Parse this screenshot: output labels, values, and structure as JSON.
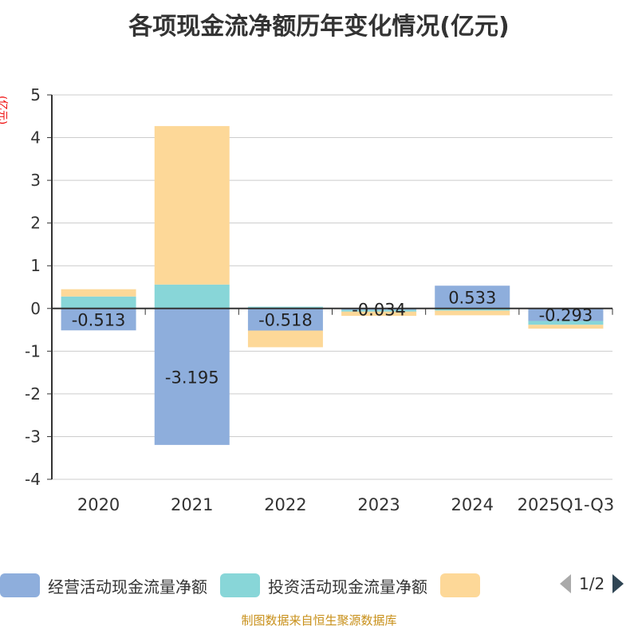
{
  "chart_data": {
    "type": "bar",
    "stacked": true,
    "title": "各项现金流净额历年变化情况(亿元)",
    "ylabel": "(亿元)",
    "ylim": [
      -4,
      5
    ],
    "yticks": [
      5,
      4,
      3,
      2,
      1,
      0,
      -1,
      -2,
      -3,
      -4
    ],
    "categories": [
      "2020",
      "2021",
      "2022",
      "2023",
      "2024",
      "2025Q1-Q3"
    ],
    "series": [
      {
        "name": "经营活动现金流量净额",
        "color": "#8eaedc",
        "values": [
          -0.513,
          -3.195,
          -0.518,
          -0.034,
          0.533,
          -0.293
        ],
        "labels": [
          "-0.513",
          "-3.195",
          "-0.518",
          "-0.034",
          "0.533",
          "-0.293"
        ]
      },
      {
        "name": "投资活动现金流量净额",
        "color": "#88d6d8",
        "values": [
          0.28,
          0.56,
          0.04,
          -0.04,
          -0.05,
          -0.09
        ]
      },
      {
        "name": "",
        "color": "#fdd898",
        "values": [
          0.17,
          3.71,
          -0.39,
          -0.1,
          -0.11,
          -0.09
        ]
      }
    ],
    "legend_position": "bottom",
    "grid": true
  },
  "legend": {
    "page": "1/2"
  },
  "footer": "制图数据来自恒生聚源数据库"
}
